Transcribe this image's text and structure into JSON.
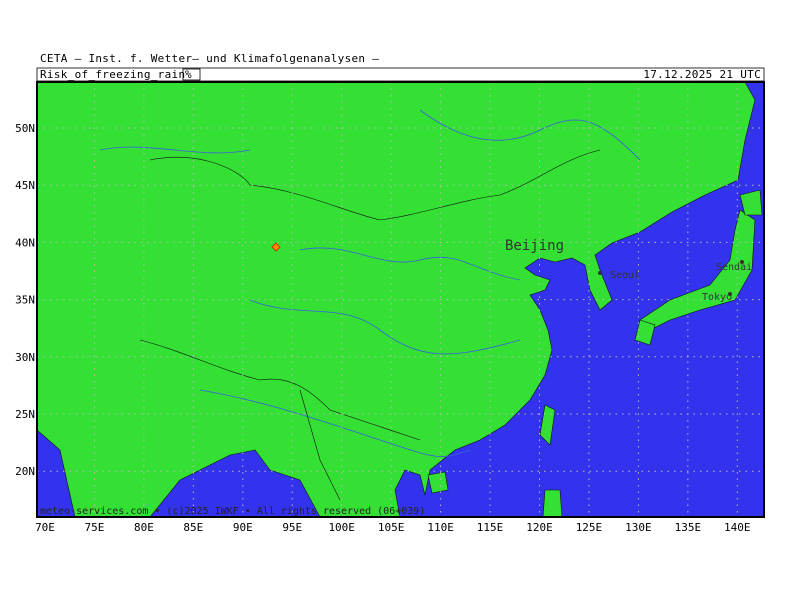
{
  "header": {
    "source": "CETA — Inst. f. Wetter— und Klimafolgenanalysen —",
    "field": "Risk_of_freezing_rain",
    "unit": "%",
    "datetime": "17.12.2025 21 UTC"
  },
  "axes": {
    "lon_labels": [
      "70E",
      "75E",
      "80E",
      "85E",
      "90E",
      "95E",
      "100E",
      "105E",
      "110E",
      "115E",
      "120E",
      "125E",
      "130E",
      "135E",
      "140E"
    ],
    "lat_labels": [
      "50N",
      "45N",
      "40N",
      "35N",
      "30N",
      "25N",
      "20N"
    ]
  },
  "cities": [
    {
      "name": "Beijing"
    },
    {
      "name": "Seoul"
    },
    {
      "name": "Sendai"
    },
    {
      "name": "Tokyo"
    }
  ],
  "footer": "meteo-services.com • (c)2025 IWKF • All rights reserved (06+039)"
}
